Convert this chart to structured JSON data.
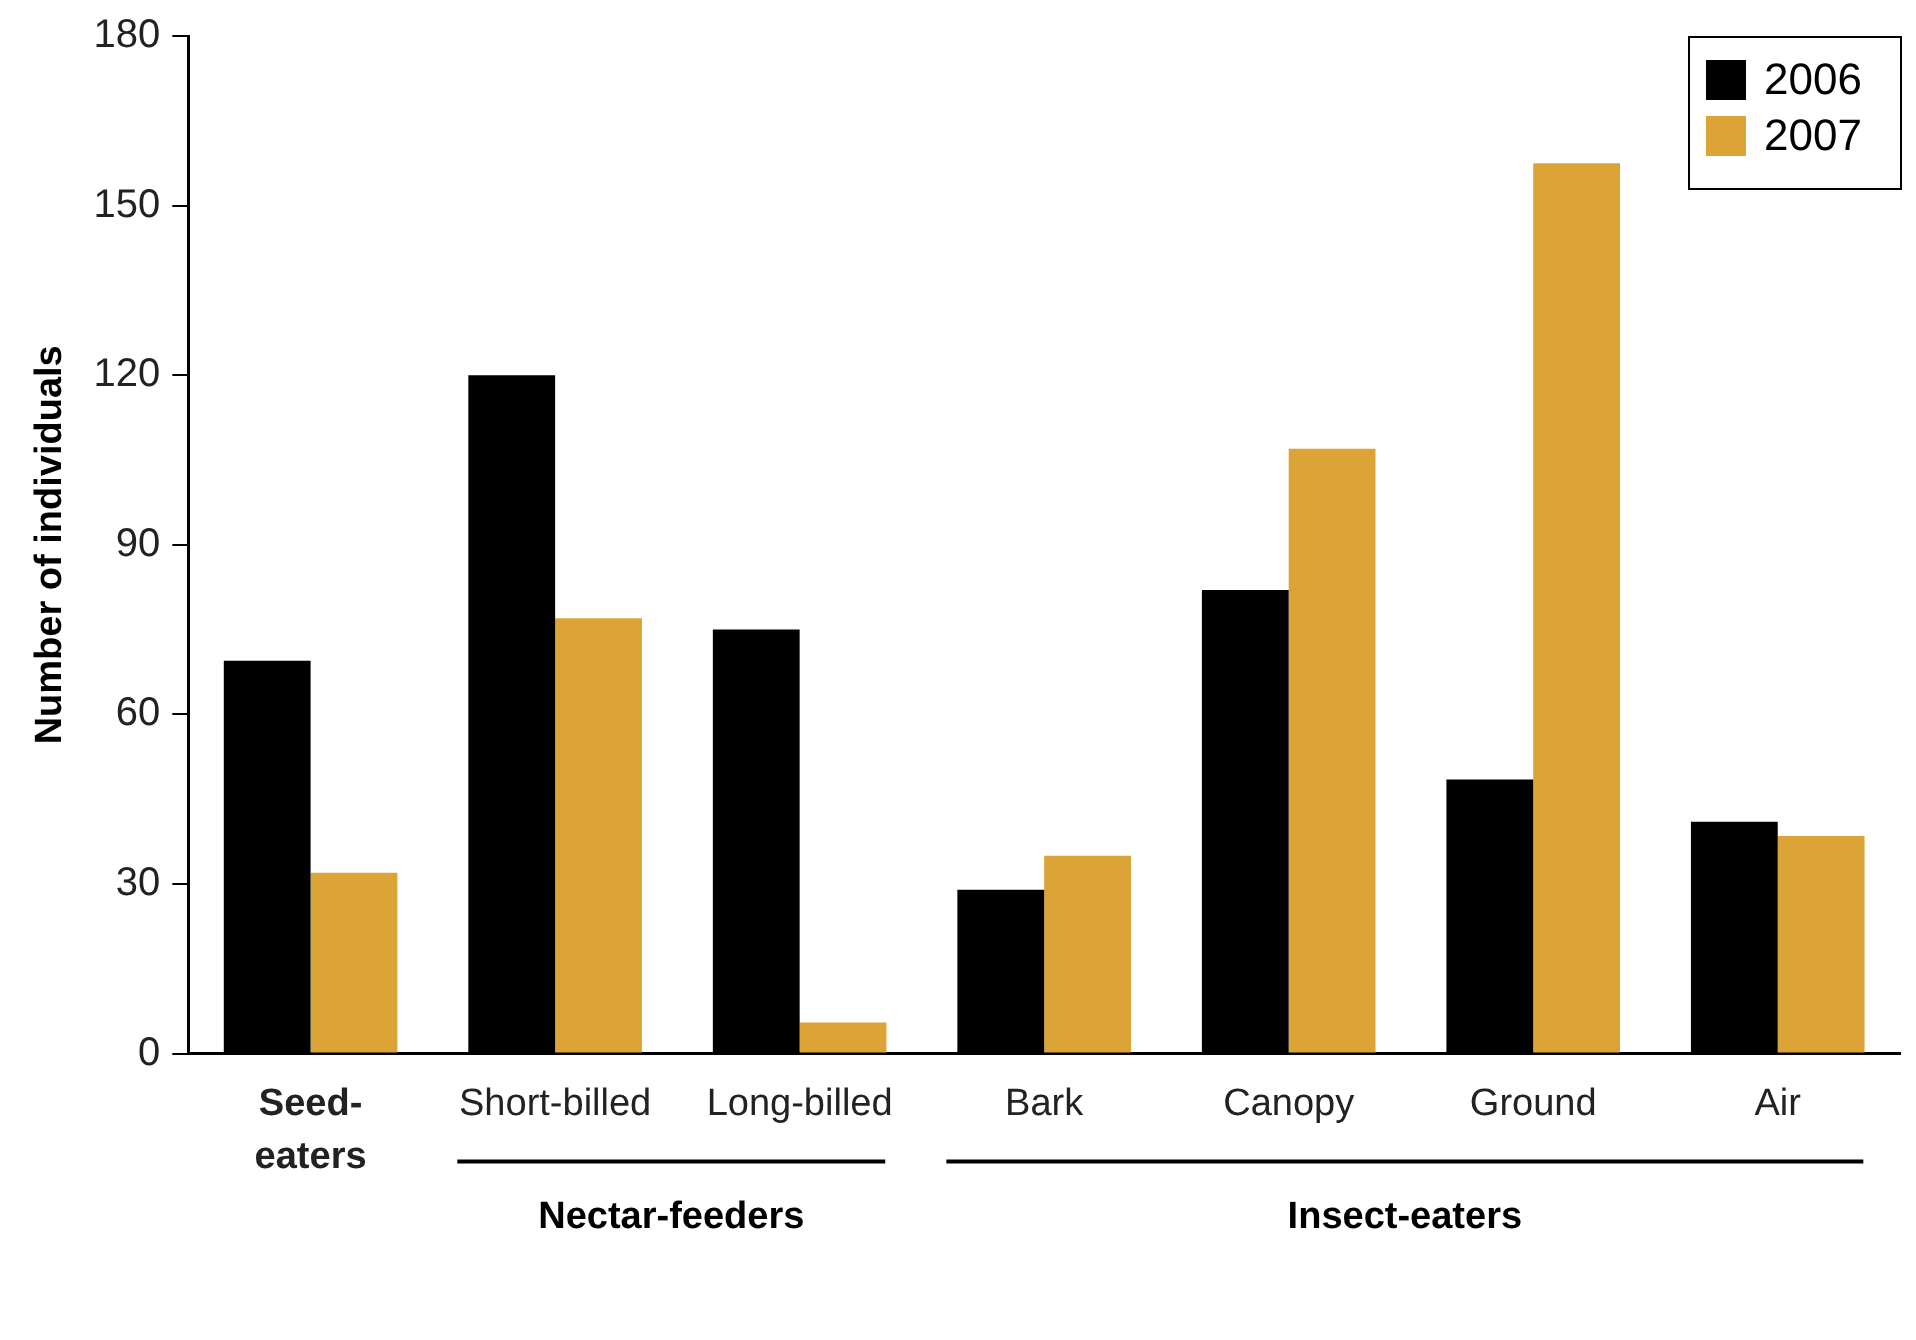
{
  "chart_data": {
    "type": "bar",
    "ylabel": "Number of individuals",
    "categories": [
      "Seed-eaters",
      "Short-billed",
      "Long-billed",
      "Bark",
      "Canopy",
      "Ground",
      "Air"
    ],
    "series": [
      {
        "name": "2006",
        "color": "#000000",
        "values": [
          69.5,
          120,
          75,
          29,
          82,
          48.5,
          41
        ]
      },
      {
        "name": "2007",
        "color": "#dca437",
        "values": [
          32,
          77,
          5.5,
          35,
          107,
          157.5,
          38.5
        ]
      }
    ],
    "ylim": [
      0,
      180
    ],
    "yticks": [
      0,
      30,
      60,
      90,
      120,
      150,
      180
    ],
    "grid": false,
    "legend": "top right",
    "annotations": [
      "Nectar-feeders",
      "Insect-eaters"
    ]
  }
}
